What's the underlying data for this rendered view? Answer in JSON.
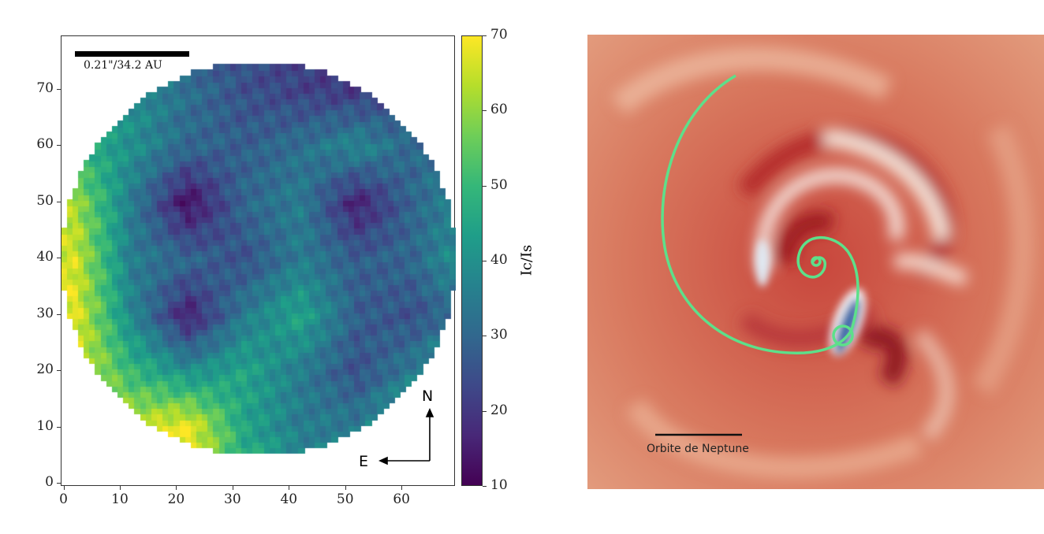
{
  "chart_data": {
    "type": "heatmap",
    "title": "",
    "xlabel": "",
    "ylabel": "",
    "xlim": [
      -0.5,
      69.5
    ],
    "ylim": [
      -0.5,
      79.5
    ],
    "x_ticks": [
      "0",
      "10",
      "20",
      "30",
      "40",
      "50",
      "60"
    ],
    "y_ticks": [
      "0",
      "10",
      "20",
      "30",
      "40",
      "50",
      "60",
      "70"
    ],
    "colormap": "viridis",
    "colorbar": {
      "label": "Ic/Is",
      "range": [
        10,
        70
      ],
      "ticks": [
        "10",
        "20",
        "30",
        "40",
        "50",
        "60",
        "70"
      ]
    },
    "mask": "circular disk, center (34.5, 40), radius 35",
    "coarse_grid": {
      "x": [
        2,
        12,
        22,
        32,
        42,
        52,
        62,
        68
      ],
      "y": [
        75,
        70,
        60,
        50,
        40,
        30,
        20,
        10,
        2
      ],
      "values": [
        [
          40,
          38,
          30,
          25,
          22,
          20,
          25,
          30
        ],
        [
          42,
          40,
          32,
          25,
          22,
          20,
          25,
          30
        ],
        [
          50,
          40,
          30,
          28,
          32,
          38,
          30,
          35
        ],
        [
          62,
          35,
          12,
          30,
          35,
          15,
          30,
          35
        ],
        [
          66,
          35,
          30,
          25,
          35,
          28,
          30,
          38
        ],
        [
          68,
          38,
          15,
          35,
          45,
          28,
          25,
          30
        ],
        [
          68,
          50,
          40,
          45,
          35,
          25,
          35,
          45
        ],
        [
          60,
          65,
          70,
          45,
          35,
          35,
          50,
          40
        ],
        [
          60,
          60,
          66,
          50,
          40,
          35,
          40,
          40
        ]
      ]
    },
    "annotations": {
      "scale_bar": "0.21\"/34.2 AU",
      "north": "N",
      "east": "E"
    }
  },
  "right_panel": {
    "scale_label": "Orbite de Neptune"
  }
}
